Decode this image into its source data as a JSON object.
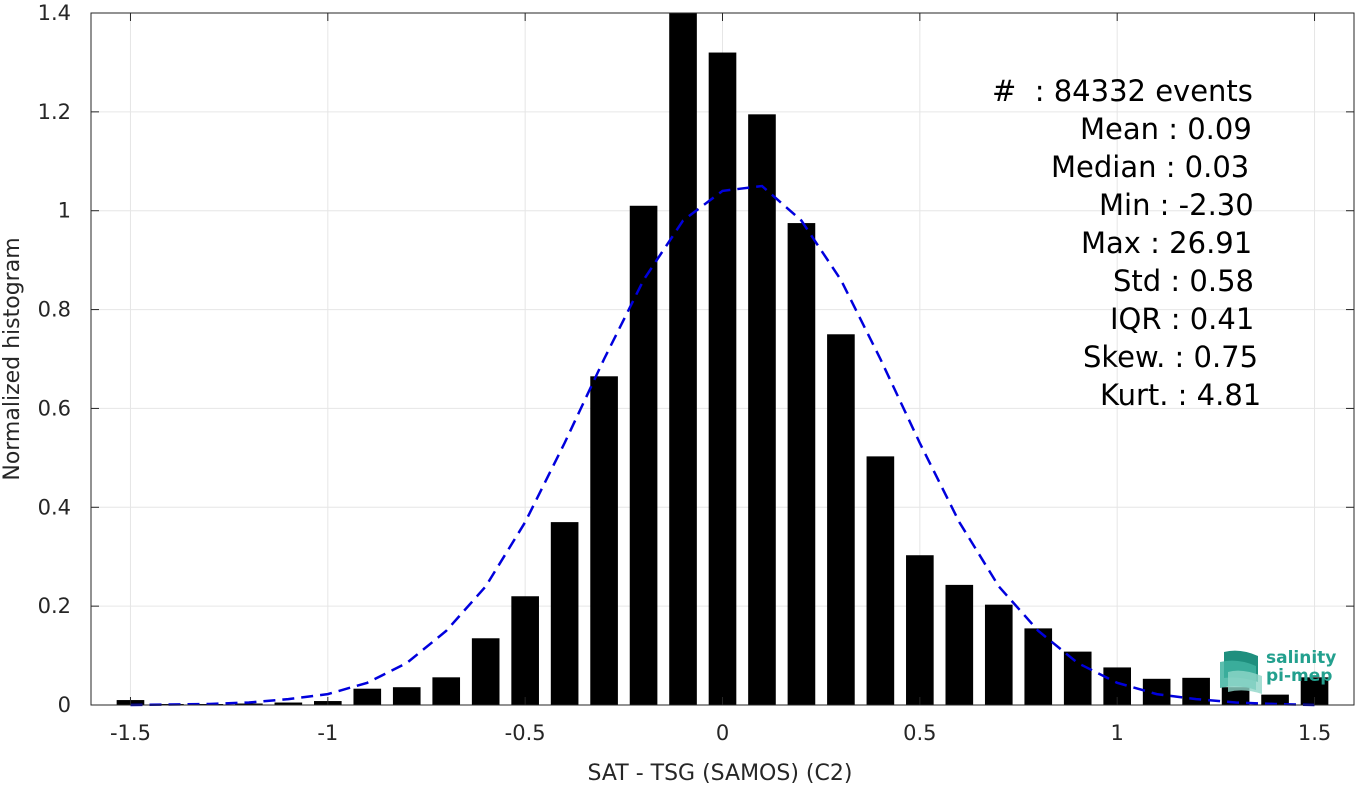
{
  "chart_data": {
    "type": "bar",
    "xlabel": "SAT - TSG (SAMOS) (C2)",
    "ylabel": "Normalized histogram",
    "xlim": [
      -1.6,
      1.6
    ],
    "ylim": [
      0,
      1.4
    ],
    "xticks": [
      -1.5,
      -1,
      -0.5,
      0,
      0.5,
      1,
      1.5
    ],
    "xtick_labels": [
      "-1.5",
      "-1",
      "-0.5",
      "0",
      "0.5",
      "1",
      "1.5"
    ],
    "yticks": [
      0,
      0.2,
      0.4,
      0.6,
      0.8,
      1,
      1.2,
      1.4
    ],
    "ytick_labels": [
      "0",
      "0.2",
      "0.4",
      "0.6",
      "0.8",
      "1",
      "1.2",
      "1.4"
    ],
    "grid": true,
    "bar_width": 0.07,
    "bar_color": "#000000",
    "bars": {
      "x": [
        -1.5,
        -1.4,
        -1.3,
        -1.2,
        -1.1,
        -1.0,
        -0.9,
        -0.8,
        -0.7,
        -0.6,
        -0.5,
        -0.4,
        -0.3,
        -0.2,
        -0.1,
        0.0,
        0.1,
        0.2,
        0.3,
        0.4,
        0.5,
        0.6,
        0.7,
        0.8,
        0.9,
        1.0,
        1.1,
        1.2,
        1.3,
        1.4,
        1.5
      ],
      "values": [
        0.01,
        0.002,
        0.002,
        0.003,
        0.005,
        0.008,
        0.033,
        0.036,
        0.056,
        0.135,
        0.22,
        0.37,
        0.665,
        1.01,
        1.4,
        1.32,
        1.195,
        0.975,
        0.75,
        0.503,
        0.303,
        0.243,
        0.203,
        0.155,
        0.108,
        0.076,
        0.053,
        0.055,
        0.036,
        0.021,
        0.056
      ]
    },
    "fit_curve": {
      "name": "gaussian fit",
      "style": "dashed",
      "color": "#0000dd",
      "x": [
        -1.5,
        -1.4,
        -1.3,
        -1.2,
        -1.1,
        -1.0,
        -0.9,
        -0.8,
        -0.7,
        -0.6,
        -0.5,
        -0.4,
        -0.3,
        -0.2,
        -0.1,
        0.0,
        0.1,
        0.2,
        0.3,
        0.4,
        0.5,
        0.6,
        0.7,
        0.8,
        0.9,
        1.0,
        1.1,
        1.2,
        1.3,
        1.4,
        1.5
      ],
      "y": [
        0.0,
        0.001,
        0.002,
        0.005,
        0.012,
        0.022,
        0.045,
        0.085,
        0.15,
        0.24,
        0.37,
        0.53,
        0.7,
        0.86,
        0.98,
        1.04,
        1.05,
        0.98,
        0.86,
        0.7,
        0.53,
        0.37,
        0.24,
        0.15,
        0.085,
        0.045,
        0.022,
        0.012,
        0.005,
        0.002,
        0.0
      ]
    }
  },
  "stats": [
    {
      "label": "#  : 84332 events"
    },
    {
      "label": "Mean : 0.09"
    },
    {
      "label": "Median : 0.03"
    },
    {
      "label": "Min : -2.30"
    },
    {
      "label": "Max : 26.91"
    },
    {
      "label": "Std : 0.58"
    },
    {
      "label": "IQR : 0.41"
    },
    {
      "label": "Skew. : 0.75"
    },
    {
      "label": "Kurt. : 4.81"
    }
  ],
  "logo": {
    "line1": "salinity",
    "line2": "pi-mep",
    "color": "#23a08e"
  }
}
